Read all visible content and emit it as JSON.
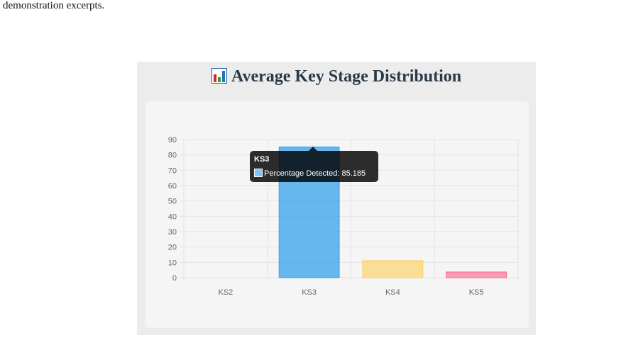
{
  "page": {
    "top_text": "demonstration excerpts."
  },
  "panel": {
    "title": "Average Key Stage Distribution",
    "icon": "bar-chart-icon"
  },
  "colors": {
    "ks2": "#ff6384",
    "ks3": "#36a2eb",
    "ks4": "#ffce56",
    "ks5": "#ff6384",
    "grid": "#e3e3e3"
  },
  "chart_data": {
    "type": "bar",
    "categories": [
      "KS2",
      "KS3",
      "KS4",
      "KS5"
    ],
    "series": [
      {
        "name": "Percentage Detected",
        "values": [
          0,
          85.185,
          11.1,
          3.7
        ],
        "fills": [
          "rgba(255,99,132,0.5)",
          "rgba(54,162,235,0.75)",
          "rgba(255,206,86,0.6)",
          "rgba(255,99,132,0.6)"
        ],
        "strokes": [
          "#ff6384",
          "#36a2eb",
          "#ffce56",
          "#ff6384"
        ]
      }
    ],
    "ylim": [
      0,
      90
    ],
    "yticks": [
      0,
      10,
      20,
      30,
      40,
      50,
      60,
      70,
      80,
      90
    ],
    "grid": true,
    "title": "",
    "xlabel": "",
    "ylabel": ""
  },
  "tooltip": {
    "title": "KS3",
    "label": "Percentage Detected: 85.185"
  }
}
